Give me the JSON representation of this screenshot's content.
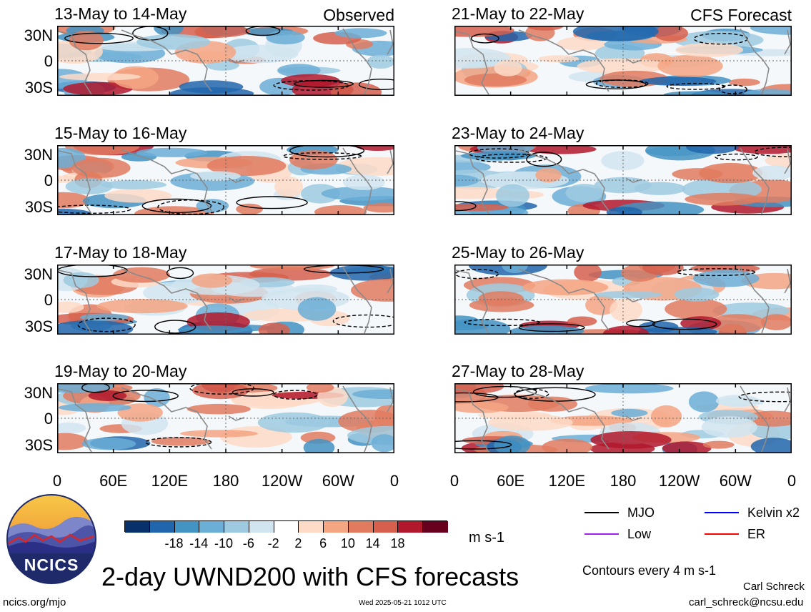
{
  "panels": [
    {
      "title": "13-May to 14-May",
      "tag": "Observed",
      "col": 0,
      "row": 0
    },
    {
      "title": "15-May to 16-May",
      "tag": "",
      "col": 0,
      "row": 1
    },
    {
      "title": "17-May to 18-May",
      "tag": "",
      "col": 0,
      "row": 2
    },
    {
      "title": "19-May to 20-May",
      "tag": "",
      "col": 0,
      "row": 3
    },
    {
      "title": "21-May to 22-May",
      "tag": "CFS Forecast",
      "col": 1,
      "row": 0
    },
    {
      "title": "23-May to 24-May",
      "tag": "",
      "col": 1,
      "row": 1
    },
    {
      "title": "25-May to 26-May",
      "tag": "",
      "col": 1,
      "row": 2
    },
    {
      "title": "27-May to 28-May",
      "tag": "",
      "col": 1,
      "row": 3
    }
  ],
  "lat_labels": [
    "30N",
    "0",
    "30S"
  ],
  "lon_labels": [
    "0",
    "60E",
    "120E",
    "180",
    "120W",
    "60W",
    "0"
  ],
  "colorbar": {
    "colors": [
      "#08306b",
      "#2166ac",
      "#4393c3",
      "#6baed6",
      "#9ecae1",
      "#d1e5f0",
      "#ffffff",
      "#fddbc7",
      "#f4a582",
      "#e07b5f",
      "#d6604d",
      "#b2182b",
      "#67001f"
    ],
    "labels": [
      "-18",
      "-14",
      "-10",
      "-6",
      "-2",
      "2",
      "6",
      "10",
      "14",
      "18"
    ],
    "units": "m s-1"
  },
  "legend": {
    "items": [
      {
        "label": "MJO",
        "color": "#000000"
      },
      {
        "label": "Kelvin x2",
        "color": "#0000ff"
      },
      {
        "label": "Low",
        "color": "#a020f0"
      },
      {
        "label": "ER",
        "color": "#ff0000"
      }
    ],
    "contours_note": "Contours every 4 m s-1"
  },
  "logo": {
    "text": "NCICS"
  },
  "main_title": "2-day UWND200 with CFS forecasts",
  "footer": {
    "left": "ncics.org/mjo",
    "center": "Wed 2025-05-21 1012 UTC",
    "author": "Carl Schreck",
    "email": "carl_schreck@ncsu.edu"
  }
}
